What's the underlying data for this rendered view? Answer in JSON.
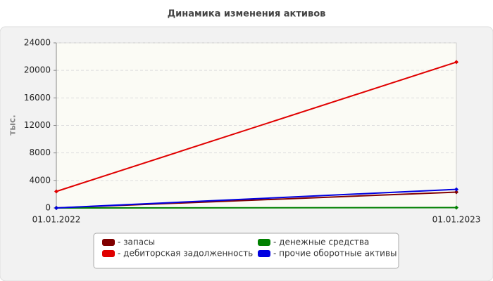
{
  "chart_data": {
    "type": "line",
    "title": "Динамика изменения активов",
    "y_label": "тыс.",
    "x": [
      "01.01.2022",
      "01.01.2023"
    ],
    "series": [
      {
        "name": "- запасы",
        "color": "#800000",
        "values": [
          0,
          2300
        ]
      },
      {
        "name": "- дебиторская задолженность",
        "color": "#e00000",
        "values": [
          2400,
          21200
        ]
      },
      {
        "name": "- денежные средства",
        "color": "#008000",
        "values": [
          0,
          50
        ]
      },
      {
        "name": "- прочие оборотные активы",
        "color": "#0000e0",
        "values": [
          0,
          2700
        ]
      }
    ],
    "ylim": [
      0,
      24000
    ],
    "yticks": [
      0,
      4000,
      8000,
      12000,
      16000,
      20000,
      24000
    ],
    "grid": true
  }
}
